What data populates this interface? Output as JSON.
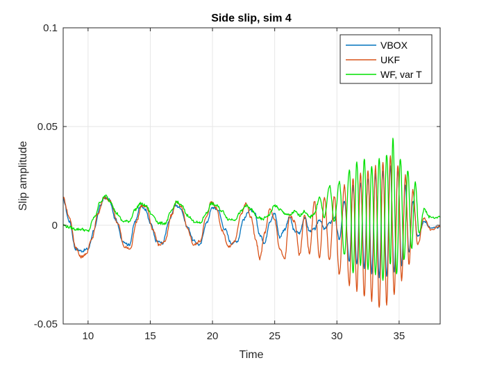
{
  "chart_data": {
    "type": "line",
    "title": "Side slip, sim 4",
    "xlabel": "Time",
    "ylabel": "Slip amplitude",
    "xlim": [
      8,
      38.3
    ],
    "ylim": [
      -0.05,
      0.1
    ],
    "x_ticks": [
      10,
      15,
      20,
      25,
      30,
      35
    ],
    "x_tick_labels": [
      "10",
      "15",
      "20",
      "25",
      "30",
      "35"
    ],
    "y_ticks": [
      -0.05,
      0,
      0.05,
      0.1
    ],
    "y_tick_labels": [
      "-0.05",
      "0",
      "0.05",
      "0.1"
    ],
    "grid": true,
    "legend_position": "top-right",
    "colors": {
      "axis": "#262626",
      "grid": "#e6e6e6"
    },
    "series": [
      {
        "name": "VBOX",
        "color": "#0072BD",
        "points": [
          [
            8,
            0.013
          ],
          [
            8.5,
            0.002
          ],
          [
            9,
            -0.012
          ],
          [
            9.5,
            -0.013
          ],
          [
            10,
            -0.012
          ],
          [
            10.5,
            -0.002
          ],
          [
            11,
            0.01
          ],
          [
            11.3,
            0.014
          ],
          [
            11.7,
            0.013
          ],
          [
            12.2,
            0.003
          ],
          [
            12.8,
            -0.008
          ],
          [
            13.3,
            -0.01
          ],
          [
            13.8,
            0.002
          ],
          [
            14.2,
            0.01
          ],
          [
            14.6,
            0.008
          ],
          [
            15,
            0.001
          ],
          [
            15.5,
            -0.008
          ],
          [
            16,
            -0.009
          ],
          [
            16.5,
            0.002
          ],
          [
            17,
            0.01
          ],
          [
            17.4,
            0.009
          ],
          [
            18,
            -0.001
          ],
          [
            18.5,
            -0.008
          ],
          [
            19,
            -0.01
          ],
          [
            19.5,
            0.001
          ],
          [
            20,
            0.009
          ],
          [
            20.4,
            0.008
          ],
          [
            21,
            -0.002
          ],
          [
            21.5,
            -0.009
          ],
          [
            22,
            -0.008
          ],
          [
            22.5,
            0.003
          ],
          [
            23,
            0.008
          ],
          [
            23.4,
            0.006
          ],
          [
            23.8,
            -0.005
          ],
          [
            24.2,
            -0.009
          ],
          [
            24.6,
            0.002
          ],
          [
            25,
            0.006
          ],
          [
            25.4,
            -0.006
          ],
          [
            25.8,
            -0.002
          ],
          [
            26.2,
            0.004
          ],
          [
            26.6,
            -0.003
          ],
          [
            27,
            -0.004
          ],
          [
            27.4,
            0.004
          ],
          [
            27.8,
            -0.003
          ],
          [
            28.2,
            -0.002
          ],
          [
            28.6,
            0.003
          ],
          [
            29,
            -0.002
          ],
          [
            29.4,
            0.001
          ],
          [
            29.8,
            0.004
          ],
          [
            30.2,
            -0.007
          ],
          [
            30.6,
            0.012
          ],
          [
            31,
            -0.018
          ],
          [
            31.3,
            0.02
          ],
          [
            31.6,
            -0.02
          ],
          [
            31.9,
            0.022
          ],
          [
            32.2,
            -0.022
          ],
          [
            32.5,
            0.024
          ],
          [
            32.8,
            -0.024
          ],
          [
            33.1,
            0.026
          ],
          [
            33.4,
            -0.026
          ],
          [
            33.7,
            0.028
          ],
          [
            34,
            -0.026
          ],
          [
            34.3,
            0.03
          ],
          [
            34.6,
            -0.024
          ],
          [
            34.9,
            0.028
          ],
          [
            35.2,
            -0.02
          ],
          [
            35.5,
            0.02
          ],
          [
            35.8,
            -0.014
          ],
          [
            36.1,
            0.012
          ],
          [
            36.5,
            -0.006
          ],
          [
            37,
            0.002
          ],
          [
            37.5,
            -0.001
          ],
          [
            38.3,
            -0.001
          ]
        ]
      },
      {
        "name": "UKF",
        "color": "#D95319",
        "points": [
          [
            8,
            0.014
          ],
          [
            8.5,
            0.004
          ],
          [
            9,
            -0.011
          ],
          [
            9.4,
            -0.016
          ],
          [
            9.8,
            -0.015
          ],
          [
            10.3,
            -0.007
          ],
          [
            10.8,
            0.006
          ],
          [
            11.3,
            0.014
          ],
          [
            11.8,
            0.012
          ],
          [
            12.4,
            0.001
          ],
          [
            12.9,
            -0.011
          ],
          [
            13.4,
            -0.012
          ],
          [
            13.9,
            0.002
          ],
          [
            14.3,
            0.01
          ],
          [
            14.7,
            0.009
          ],
          [
            15.2,
            -0.002
          ],
          [
            15.7,
            -0.01
          ],
          [
            16.2,
            -0.008
          ],
          [
            16.7,
            0.005
          ],
          [
            17.1,
            0.012
          ],
          [
            17.5,
            0.009
          ],
          [
            18,
            -0.002
          ],
          [
            18.5,
            -0.01
          ],
          [
            19,
            -0.008
          ],
          [
            19.5,
            0.004
          ],
          [
            19.9,
            0.012
          ],
          [
            20.3,
            0.009
          ],
          [
            20.8,
            -0.003
          ],
          [
            21.3,
            -0.011
          ],
          [
            21.8,
            -0.008
          ],
          [
            22.3,
            0.006
          ],
          [
            22.7,
            0.011
          ],
          [
            23.1,
            0.004
          ],
          [
            23.5,
            -0.008
          ],
          [
            23.8,
            -0.017
          ],
          [
            24.2,
            -0.004
          ],
          [
            24.6,
            0.008
          ],
          [
            25,
            0.003
          ],
          [
            25.4,
            -0.012
          ],
          [
            25.8,
            -0.017
          ],
          [
            26.2,
            0.005
          ],
          [
            26.6,
            0.002
          ],
          [
            27,
            -0.015
          ],
          [
            27.4,
            0.005
          ],
          [
            27.8,
            -0.014
          ],
          [
            28.2,
            0.012
          ],
          [
            28.6,
            -0.016
          ],
          [
            29,
            0.014
          ],
          [
            29.4,
            -0.018
          ],
          [
            29.8,
            0.015
          ],
          [
            30.2,
            -0.025
          ],
          [
            30.6,
            0.02
          ],
          [
            31,
            -0.03
          ],
          [
            31.3,
            0.024
          ],
          [
            31.6,
            -0.033
          ],
          [
            31.9,
            0.026
          ],
          [
            32.2,
            -0.036
          ],
          [
            32.5,
            0.028
          ],
          [
            32.8,
            -0.038
          ],
          [
            33.1,
            0.03
          ],
          [
            33.4,
            -0.042
          ],
          [
            33.7,
            0.032
          ],
          [
            34,
            -0.04
          ],
          [
            34.3,
            0.035
          ],
          [
            34.6,
            -0.035
          ],
          [
            34.9,
            0.03
          ],
          [
            35.2,
            -0.028
          ],
          [
            35.5,
            0.025
          ],
          [
            35.8,
            -0.02
          ],
          [
            36.1,
            0.018
          ],
          [
            36.5,
            -0.01
          ],
          [
            37,
            0.004
          ],
          [
            37.5,
            -0.002
          ],
          [
            38.3,
            -0.001
          ]
        ]
      },
      {
        "name": "WF, var T",
        "color": "#00E000",
        "points": [
          [
            8,
            0
          ],
          [
            8.5,
            -0.001
          ],
          [
            9,
            -0.002
          ],
          [
            9.5,
            -0.002
          ],
          [
            10,
            -0.003
          ],
          [
            10.5,
            0.004
          ],
          [
            11,
            0.012
          ],
          [
            11.4,
            0.015
          ],
          [
            11.8,
            0.012
          ],
          [
            12.3,
            0.006
          ],
          [
            12.8,
            0.002
          ],
          [
            13.3,
            0.002
          ],
          [
            13.8,
            0.008
          ],
          [
            14.2,
            0.011
          ],
          [
            14.6,
            0.01
          ],
          [
            15.2,
            0.005
          ],
          [
            15.7,
            0.001
          ],
          [
            16.2,
            0.001
          ],
          [
            16.7,
            0.007
          ],
          [
            17.1,
            0.012
          ],
          [
            17.5,
            0.01
          ],
          [
            18,
            0.005
          ],
          [
            18.5,
            0.002
          ],
          [
            19,
            0.001
          ],
          [
            19.5,
            0.006
          ],
          [
            19.9,
            0.011
          ],
          [
            20.3,
            0.01
          ],
          [
            20.8,
            0.007
          ],
          [
            21.3,
            0.003
          ],
          [
            21.8,
            0.003
          ],
          [
            22.3,
            0.007
          ],
          [
            22.7,
            0.01
          ],
          [
            23.1,
            0.008
          ],
          [
            23.6,
            0.004
          ],
          [
            24,
            0.003
          ],
          [
            24.5,
            0.005
          ],
          [
            25,
            0.01
          ],
          [
            25.4,
            0.008
          ],
          [
            25.8,
            0.006
          ],
          [
            26.2,
            0.005
          ],
          [
            26.6,
            0.007
          ],
          [
            27,
            0.005
          ],
          [
            27.4,
            0.007
          ],
          [
            27.8,
            0.004
          ],
          [
            28.2,
            0.006
          ],
          [
            28.6,
            0.014
          ],
          [
            29,
            0.004
          ],
          [
            29.4,
            0.02
          ],
          [
            29.8,
            0.002
          ],
          [
            30.2,
            0.022
          ],
          [
            30.6,
            -0.015
          ],
          [
            31,
            0.028
          ],
          [
            31.3,
            -0.024
          ],
          [
            31.6,
            0.032
          ],
          [
            31.9,
            -0.02
          ],
          [
            32.2,
            0.034
          ],
          [
            32.5,
            -0.022
          ],
          [
            32.8,
            0.03
          ],
          [
            33.1,
            -0.025
          ],
          [
            33.4,
            0.034
          ],
          [
            33.7,
            -0.028
          ],
          [
            34,
            0.036
          ],
          [
            34.3,
            -0.02
          ],
          [
            34.5,
            0.044
          ],
          [
            34.8,
            -0.025
          ],
          [
            35.1,
            0.034
          ],
          [
            35.4,
            -0.018
          ],
          [
            35.7,
            0.028
          ],
          [
            36,
            -0.012
          ],
          [
            36.3,
            0.022
          ],
          [
            36.6,
            -0.004
          ],
          [
            37,
            0.008
          ],
          [
            37.5,
            0.004
          ],
          [
            38.3,
            0.004
          ]
        ]
      }
    ]
  }
}
